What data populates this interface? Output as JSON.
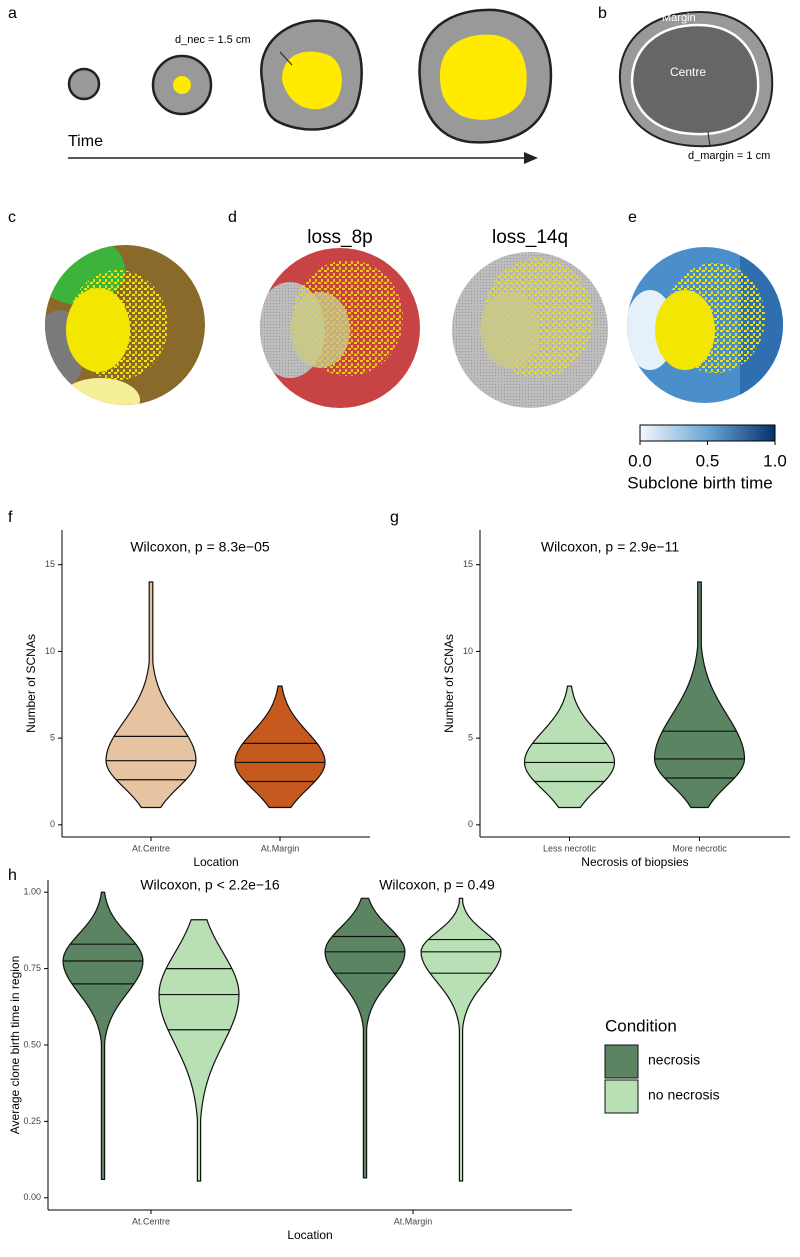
{
  "panels": {
    "a": {
      "letter": "a",
      "annotation": "d_nec = 1.5 cm",
      "axis_label": "Time"
    },
    "b": {
      "letter": "b",
      "margin_label": "Margin",
      "centre_label": "Centre",
      "annotation": "d_margin = 1 cm"
    },
    "c": {
      "letter": "c"
    },
    "d": {
      "letter": "d",
      "titles": [
        "loss_8p",
        "loss_14q"
      ]
    },
    "e": {
      "letter": "e",
      "colorbar": {
        "title": "Subclone birth time",
        "lim": [
          0,
          1
        ],
        "ticks": [
          {
            "value": 0,
            "label": "0.0"
          },
          {
            "value": 0.5,
            "label": "0.5"
          },
          {
            "value": 1,
            "label": "1.0"
          }
        ]
      }
    }
  },
  "chart_data": [
    {
      "type": "violin",
      "letter": "f",
      "annotations": [
        "Wilcoxon, p = 8.3e−05"
      ],
      "xlabel": "Location",
      "ylabel": "Number of SCNAs",
      "categories": [
        "At.Centre",
        "At.Margin"
      ],
      "ylim": [
        -0.7,
        17
      ],
      "yticks": [
        0,
        5,
        10,
        15
      ],
      "series": [
        {
          "colors": [
            "#e6c4a1",
            "#c65a1e"
          ],
          "min": [
            1,
            1
          ],
          "q1": [
            2.6,
            2.5
          ],
          "median": [
            3.7,
            3.6
          ],
          "q3": [
            5.1,
            4.7
          ],
          "max": [
            14,
            8
          ]
        }
      ]
    },
    {
      "type": "violin",
      "letter": "g",
      "annotations": [
        "Wilcoxon, p = 2.9e−11"
      ],
      "xlabel": "Necrosis of biopsies",
      "ylabel": "Number of SCNAs",
      "categories": [
        "Less necrotic",
        "More necrotic"
      ],
      "ylim": [
        -0.7,
        17
      ],
      "yticks": [
        0,
        5,
        10,
        15
      ],
      "series": [
        {
          "colors": [
            "#b9e0b4",
            "#5a8462"
          ],
          "min": [
            1,
            1
          ],
          "q1": [
            2.5,
            2.7
          ],
          "median": [
            3.6,
            3.8
          ],
          "q3": [
            4.7,
            5.4
          ],
          "max": [
            8,
            14
          ]
        }
      ]
    },
    {
      "type": "violin",
      "letter": "h",
      "annotations": [
        "Wilcoxon, p < 2.2e−16",
        "Wilcoxon, p = 0.49"
      ],
      "xlabel": "Location",
      "ylabel": "Average clone birth time in region",
      "categories": [
        "At.Centre",
        "At.Margin"
      ],
      "ylim": [
        -0.04,
        1.04
      ],
      "yticks": [
        {
          "value": 0,
          "label": "0.00"
        },
        {
          "value": 0.25,
          "label": "0.25"
        },
        {
          "value": 0.5,
          "label": "0.50"
        },
        {
          "value": 0.75,
          "label": "0.75"
        },
        {
          "value": 1,
          "label": "1.00"
        }
      ],
      "legend_title": "Condition",
      "series": [
        {
          "name": "necrosis",
          "color": "#5a8462",
          "min": [
            0.06,
            0.065
          ],
          "q1": [
            0.7,
            0.735
          ],
          "median": [
            0.775,
            0.805
          ],
          "q3": [
            0.83,
            0.855
          ],
          "max": [
            1.0,
            0.98
          ]
        },
        {
          "name": "no necrosis",
          "color": "#b9e0b4",
          "min": [
            0.055,
            0.055
          ],
          "q1": [
            0.55,
            0.735
          ],
          "median": [
            0.665,
            0.805
          ],
          "q3": [
            0.75,
            0.845
          ],
          "max": [
            0.91,
            0.98
          ]
        }
      ]
    }
  ]
}
